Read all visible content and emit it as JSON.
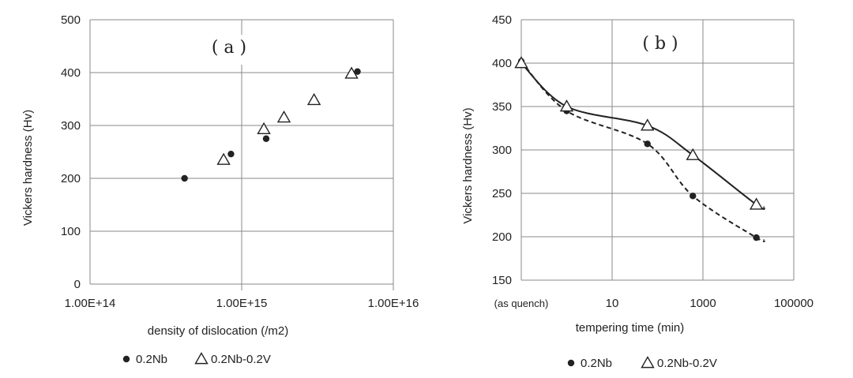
{
  "chart_data": [
    {
      "type": "scatter",
      "panel_label": "( a )",
      "xlabel": "density of dislocation (/m2)",
      "ylabel": "Vickers hardness (Hv)",
      "x_scale": "log",
      "xlim": [
        100000000000000.0,
        1e+16
      ],
      "ylim": [
        0,
        500
      ],
      "x_ticks": [
        100000000000000.0,
        1000000000000000.0,
        1e+16
      ],
      "x_tick_labels": [
        "1.00E+14",
        "1.00E+15",
        "1.00E+16"
      ],
      "y_ticks": [
        0,
        100,
        200,
        300,
        400,
        500
      ],
      "y_tick_labels": [
        "0",
        "100",
        "200",
        "300",
        "400",
        "500"
      ],
      "grid": true,
      "legend_position": "bottom",
      "series": [
        {
          "name": "0.2Nb",
          "marker": "dot",
          "points": [
            [
              420000000000000.0,
              200
            ],
            [
              850000000000000.0,
              246
            ],
            [
              1450000000000000.0,
              275
            ],
            [
              5800000000000000.0,
              402
            ]
          ]
        },
        {
          "name": "0.2Nb-0.2V",
          "marker": "triangle",
          "points": [
            [
              760000000000000.0,
              235
            ],
            [
              1400000000000000.0,
              293
            ],
            [
              1900000000000000.0,
              315
            ],
            [
              3000000000000000.0,
              348
            ],
            [
              5300000000000000.0,
              398
            ]
          ]
        }
      ]
    },
    {
      "type": "scatter",
      "panel_label": "( b )",
      "xlabel": "tempering time (min)",
      "ylabel": "Vickers hardness (Hv)",
      "x_scale": "log",
      "xlim": [
        0.1,
        100000
      ],
      "ylim": [
        150,
        450
      ],
      "x_ticks": [
        0.1,
        10,
        1000,
        100000
      ],
      "x_tick_labels": [
        "(as quench)",
        "10",
        "1000",
        "100000"
      ],
      "y_ticks": [
        150,
        200,
        250,
        300,
        350,
        400,
        450
      ],
      "y_tick_labels": [
        "150",
        "200",
        "250",
        "300",
        "350",
        "400",
        "450"
      ],
      "grid": true,
      "legend_position": "bottom",
      "series": [
        {
          "name": "0.2Nb",
          "marker": "dot",
          "line": "dashed",
          "points": [
            [
              0.1,
              402
            ],
            [
              1,
              345
            ],
            [
              60,
              307
            ],
            [
              600,
              247
            ],
            [
              15000,
              199
            ]
          ]
        },
        {
          "name": "0.2Nb-0.2V",
          "marker": "triangle",
          "line": "solid",
          "points": [
            [
              0.1,
              400
            ],
            [
              1,
              350
            ],
            [
              60,
              328
            ],
            [
              600,
              294
            ],
            [
              15000,
              237
            ]
          ]
        }
      ]
    }
  ]
}
